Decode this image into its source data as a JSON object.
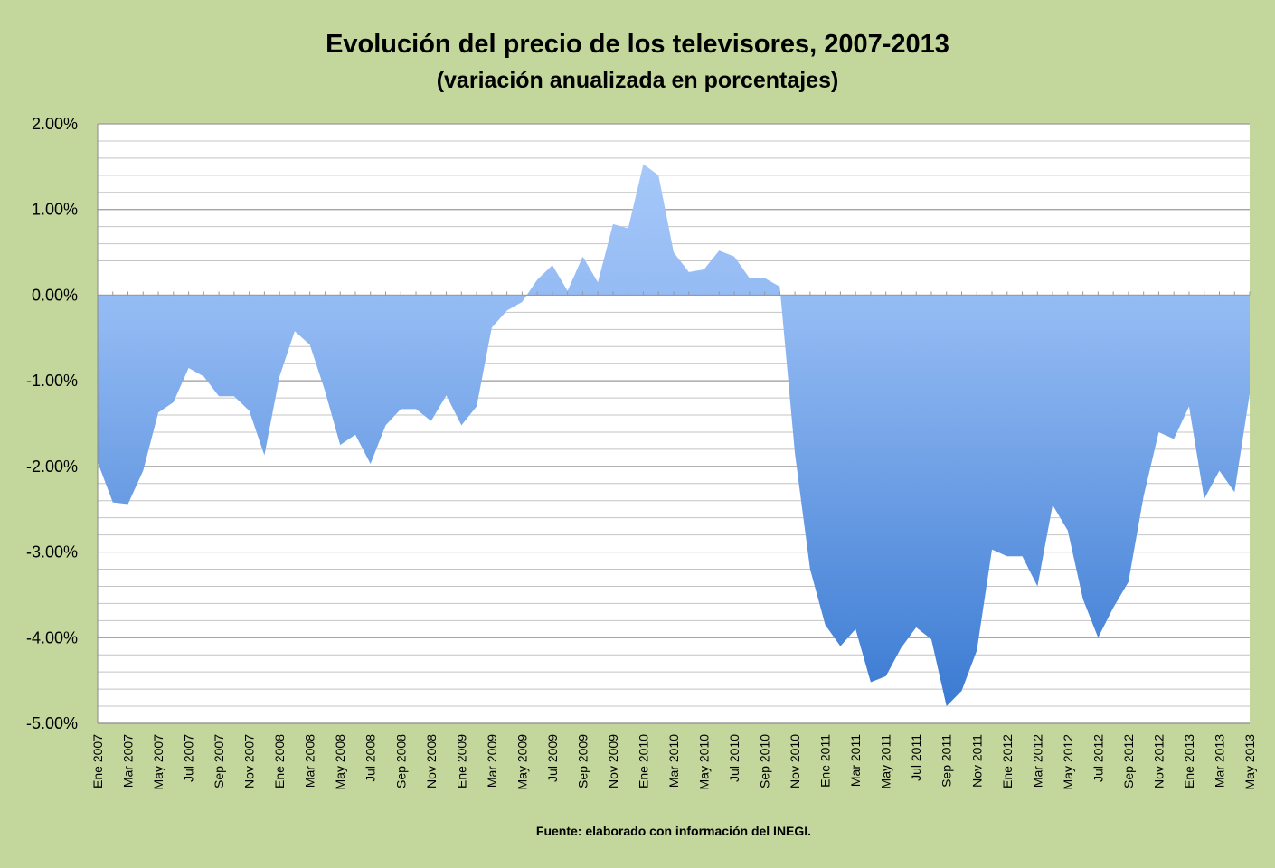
{
  "chart_data": {
    "type": "area",
    "title": "Evolución del precio de los televisores, 2007-2013",
    "subtitle": "(variación anualizada en porcentajes)",
    "source": "Fuente: elaborado con información del INEGI.",
    "ylim": [
      -5,
      2
    ],
    "yticks": [
      2,
      1,
      0,
      -1,
      -2,
      -3,
      -4,
      -5
    ],
    "ytick_labels": [
      "2.00%",
      "1.00%",
      "0.00%",
      "-1.00%",
      "-2.00%",
      "-3.00%",
      "-4.00%",
      "-5.00%"
    ],
    "grid": true,
    "minor_grid_step": 0.2,
    "x_labels": [
      "Ene 2007",
      "Mar 2007",
      "May 2007",
      "Jul 2007",
      "Sep 2007",
      "Nov 2007",
      "Ene 2008",
      "Mar 2008",
      "May 2008",
      "Jul 2008",
      "Sep 2008",
      "Nov 2008",
      "Ene 2009",
      "Mar 2009",
      "May 2009",
      "Jul 2009",
      "Sep 2009",
      "Nov 2009",
      "Ene 2010",
      "Mar 2010",
      "May 2010",
      "Jul 2010",
      "Sep 2010",
      "Nov 2010",
      "Ene 2011",
      "Mar 2011",
      "May 2011",
      "Jul 2011",
      "Sep 2011",
      "Nov 2011",
      "Ene 2012",
      "Mar 2012",
      "May 2012",
      "Jul 2012",
      "Sep 2012",
      "Nov 2012",
      "Ene 2013",
      "Mar 2013",
      "May 2013"
    ],
    "series": [
      {
        "name": "Variación anualizada",
        "color": "#8db4f0",
        "values": [
          -1.95,
          -2.42,
          -2.44,
          -2.05,
          -1.37,
          -1.25,
          -0.85,
          -0.95,
          -1.18,
          -1.18,
          -1.35,
          -1.87,
          -0.95,
          -0.42,
          -0.58,
          -1.12,
          -1.75,
          -1.63,
          -1.97,
          -1.52,
          -1.33,
          -1.33,
          -1.47,
          -1.17,
          -1.52,
          -1.3,
          -0.38,
          -0.18,
          -0.08,
          0.18,
          0.35,
          0.05,
          0.45,
          0.15,
          0.83,
          0.78,
          1.53,
          1.4,
          0.5,
          0.27,
          0.3,
          0.52,
          0.45,
          0.2,
          0.2,
          0.1,
          -1.85,
          -3.2,
          -3.85,
          -4.1,
          -3.9,
          -4.52,
          -4.45,
          -4.12,
          -3.88,
          -4.02,
          -4.8,
          -4.62,
          -4.15,
          -2.97,
          -3.05,
          -3.05,
          -3.4,
          -2.45,
          -2.75,
          -3.55,
          -4.0,
          -3.65,
          -3.35,
          -2.35,
          -1.6,
          -1.68,
          -1.3,
          -2.38,
          -2.05,
          -2.3,
          -1.15
        ]
      }
    ]
  }
}
